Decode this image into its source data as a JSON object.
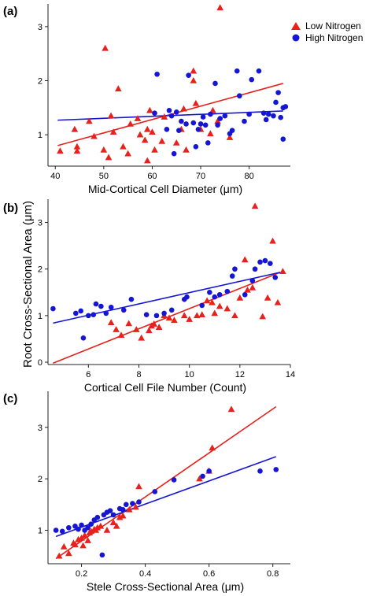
{
  "colors": {
    "low": "#e8211c",
    "high": "#1515d6",
    "axis": "#222222"
  },
  "legend": {
    "placement": "top-right",
    "entries": [
      {
        "label": "Low Nitrogen",
        "marker": "triangle",
        "color_key": "low"
      },
      {
        "label": "High Nitrogen",
        "marker": "circle",
        "color_key": "high"
      }
    ]
  },
  "shared_ylabel": "Root Cross-Sectional Area (μm)",
  "chart_data": [
    {
      "panel": "(a)",
      "type": "scatter",
      "xlabel": "Mid-Cortical Cell Diameter (μm)",
      "ylabel": "",
      "xlim": [
        38.5,
        88.5
      ],
      "ylim": [
        0.42,
        3.42
      ],
      "xticks": [
        40,
        50,
        60,
        70,
        80
      ],
      "yticks": [
        1,
        2,
        3
      ],
      "grid": false,
      "series": [
        {
          "name": "Low Nitrogen",
          "marker": "triangle",
          "color_key": "low",
          "points": [
            [
              41,
              0.7
            ],
            [
              44,
              1.1
            ],
            [
              44.5,
              0.78
            ],
            [
              44.5,
              0.7
            ],
            [
              47,
              1.25
            ],
            [
              48,
              0.97
            ],
            [
              50,
              0.72
            ],
            [
              50.3,
              2.6
            ],
            [
              51,
              0.58
            ],
            [
              51.5,
              1.35
            ],
            [
              52,
              1.05
            ],
            [
              53,
              1.85
            ],
            [
              54,
              0.78
            ],
            [
              55,
              0.65
            ],
            [
              55.5,
              1.2
            ],
            [
              57,
              1.3
            ],
            [
              57.5,
              1.0
            ],
            [
              58.5,
              0.9
            ],
            [
              59,
              0.52
            ],
            [
              59,
              1.1
            ],
            [
              59.5,
              1.45
            ],
            [
              60,
              1.05
            ],
            [
              60.5,
              0.72
            ],
            [
              62,
              0.88
            ],
            [
              62.5,
              1.33
            ],
            [
              65,
              0.85
            ],
            [
              66,
              1.1
            ],
            [
              66.5,
              1.48
            ],
            [
              67,
              0.72
            ],
            [
              68.5,
              2.18
            ],
            [
              68.5,
              2.0
            ],
            [
              69,
              1.58
            ],
            [
              70,
              1.1
            ],
            [
              72,
              1.02
            ],
            [
              72.5,
              1.45
            ],
            [
              73.5,
              1.25
            ],
            [
              74,
              3.35
            ],
            [
              76,
              0.95
            ]
          ]
        },
        {
          "name": "High Nitrogen",
          "marker": "circle",
          "color_key": "high",
          "points": [
            [
              60.5,
              1.4
            ],
            [
              61,
              2.12
            ],
            [
              63,
              1.1
            ],
            [
              63.5,
              1.45
            ],
            [
              64,
              1.35
            ],
            [
              64.5,
              0.65
            ],
            [
              65,
              1.42
            ],
            [
              65.5,
              1.08
            ],
            [
              66,
              1.25
            ],
            [
              67,
              1.2
            ],
            [
              67.5,
              2.1
            ],
            [
              68.5,
              1.22
            ],
            [
              69,
              0.78
            ],
            [
              69.5,
              1.1
            ],
            [
              70,
              1.2
            ],
            [
              70.5,
              1.33
            ],
            [
              71,
              1.18
            ],
            [
              71.5,
              0.85
            ],
            [
              72,
              1.38
            ],
            [
              73,
              1.95
            ],
            [
              73.5,
              1.18
            ],
            [
              74,
              1.3
            ],
            [
              75,
              1.35
            ],
            [
              76,
              1.02
            ],
            [
              76.5,
              1.08
            ],
            [
              77.5,
              2.18
            ],
            [
              78,
              1.72
            ],
            [
              79,
              1.25
            ],
            [
              80,
              1.38
            ],
            [
              80.5,
              2.02
            ],
            [
              82,
              2.18
            ],
            [
              83,
              1.4
            ],
            [
              83.5,
              1.28
            ],
            [
              84,
              1.38
            ],
            [
              85,
              1.35
            ],
            [
              85.5,
              1.6
            ],
            [
              86,
              1.78
            ],
            [
              86.5,
              1.32
            ],
            [
              87,
              1.5
            ],
            [
              87,
              0.92
            ],
            [
              87.5,
              1.52
            ]
          ]
        }
      ],
      "fits": [
        {
          "series": "Low Nitrogen",
          "color_key": "low",
          "x": [
            40.5,
            87
          ],
          "y": [
            0.8,
            1.95
          ]
        },
        {
          "series": "High Nitrogen",
          "color_key": "high",
          "x": [
            40.5,
            87
          ],
          "y": [
            1.27,
            1.44
          ]
        }
      ]
    },
    {
      "panel": "(b)",
      "type": "scatter",
      "xlabel": "Cortical Cell File Number (Count)",
      "ylabel": "Root Cross-Sectional Area (μm)",
      "xlim": [
        4.4,
        14.0
      ],
      "ylim": [
        -0.05,
        3.5
      ],
      "xticks": [
        6,
        8,
        10,
        12,
        14
      ],
      "yticks": [
        0,
        1,
        2,
        3
      ],
      "grid": false,
      "series": [
        {
          "name": "Low Nitrogen",
          "marker": "triangle",
          "color_key": "low",
          "points": [
            [
              6.9,
              0.85
            ],
            [
              7.1,
              0.7
            ],
            [
              7.3,
              0.58
            ],
            [
              7.6,
              0.83
            ],
            [
              7.9,
              0.7
            ],
            [
              8.1,
              0.52
            ],
            [
              8.4,
              0.68
            ],
            [
              8.5,
              0.78
            ],
            [
              8.6,
              0.82
            ],
            [
              8.8,
              0.75
            ],
            [
              9.0,
              1.0
            ],
            [
              9.2,
              0.95
            ],
            [
              9.4,
              0.9
            ],
            [
              9.8,
              1.0
            ],
            [
              10.0,
              0.92
            ],
            [
              10.3,
              1.0
            ],
            [
              10.5,
              1.02
            ],
            [
              10.7,
              1.32
            ],
            [
              10.9,
              1.28
            ],
            [
              11.0,
              1.05
            ],
            [
              11.2,
              1.2
            ],
            [
              11.5,
              1.15
            ],
            [
              11.8,
              1.0
            ],
            [
              12.0,
              1.38
            ],
            [
              12.2,
              2.2
            ],
            [
              12.3,
              1.55
            ],
            [
              12.5,
              1.6
            ],
            [
              12.6,
              3.35
            ],
            [
              12.9,
              0.98
            ],
            [
              13.1,
              1.38
            ],
            [
              13.3,
              2.6
            ],
            [
              13.5,
              1.28
            ],
            [
              13.7,
              1.95
            ]
          ]
        },
        {
          "name": "High Nitrogen",
          "marker": "circle",
          "color_key": "high",
          "points": [
            [
              4.6,
              1.15
            ],
            [
              5.5,
              1.05
            ],
            [
              5.7,
              1.1
            ],
            [
              5.8,
              0.52
            ],
            [
              6.0,
              1.0
            ],
            [
              6.2,
              1.02
            ],
            [
              6.3,
              1.25
            ],
            [
              6.5,
              1.2
            ],
            [
              6.7,
              1.05
            ],
            [
              6.9,
              1.18
            ],
            [
              7.4,
              1.12
            ],
            [
              7.7,
              1.35
            ],
            [
              8.3,
              1.02
            ],
            [
              8.7,
              1.0
            ],
            [
              9.0,
              1.05
            ],
            [
              9.3,
              1.12
            ],
            [
              9.8,
              1.35
            ],
            [
              9.9,
              1.4
            ],
            [
              10.5,
              1.22
            ],
            [
              10.8,
              1.5
            ],
            [
              11.0,
              1.4
            ],
            [
              11.2,
              1.45
            ],
            [
              11.5,
              1.52
            ],
            [
              11.7,
              1.85
            ],
            [
              11.8,
              2.0
            ],
            [
              12.2,
              1.45
            ],
            [
              12.5,
              1.75
            ],
            [
              12.6,
              2.0
            ],
            [
              12.8,
              2.15
            ],
            [
              13.0,
              2.18
            ],
            [
              13.2,
              2.12
            ],
            [
              13.4,
              1.82
            ]
          ]
        }
      ],
      "fits": [
        {
          "series": "Low Nitrogen",
          "color_key": "low",
          "x": [
            4.6,
            13.6
          ],
          "y": [
            -0.02,
            1.93
          ]
        },
        {
          "series": "High Nitrogen",
          "color_key": "high",
          "x": [
            4.6,
            13.6
          ],
          "y": [
            0.84,
            1.93
          ]
        }
      ]
    },
    {
      "panel": "(c)",
      "type": "scatter",
      "xlabel": "Stele Cross-Sectional Area (μm)",
      "ylabel": "",
      "xlim": [
        0.095,
        0.855
      ],
      "ylim": [
        0.35,
        3.7
      ],
      "xticks": [
        0.2,
        0.4,
        0.6,
        0.8
      ],
      "yticks": [
        1,
        2,
        3
      ],
      "grid": false,
      "series": [
        {
          "name": "Low Nitrogen",
          "marker": "triangle",
          "color_key": "low",
          "points": [
            [
              0.13,
              0.5
            ],
            [
              0.145,
              0.68
            ],
            [
              0.16,
              0.55
            ],
            [
              0.175,
              0.75
            ],
            [
              0.18,
              0.72
            ],
            [
              0.19,
              0.82
            ],
            [
              0.2,
              0.85
            ],
            [
              0.205,
              0.7
            ],
            [
              0.21,
              0.9
            ],
            [
              0.22,
              0.8
            ],
            [
              0.225,
              0.95
            ],
            [
              0.23,
              0.98
            ],
            [
              0.24,
              1.02
            ],
            [
              0.245,
              1.0
            ],
            [
              0.25,
              1.05
            ],
            [
              0.26,
              1.08
            ],
            [
              0.28,
              1.0
            ],
            [
              0.3,
              1.15
            ],
            [
              0.31,
              1.08
            ],
            [
              0.32,
              1.25
            ],
            [
              0.33,
              1.28
            ],
            [
              0.35,
              1.4
            ],
            [
              0.37,
              1.45
            ],
            [
              0.38,
              1.85
            ],
            [
              0.57,
              2.0
            ],
            [
              0.6,
              2.15
            ],
            [
              0.61,
              2.6
            ],
            [
              0.67,
              3.35
            ]
          ]
        },
        {
          "name": "High Nitrogen",
          "marker": "circle",
          "color_key": "high",
          "points": [
            [
              0.12,
              1.0
            ],
            [
              0.14,
              0.98
            ],
            [
              0.16,
              1.05
            ],
            [
              0.18,
              1.08
            ],
            [
              0.19,
              1.02
            ],
            [
              0.2,
              1.1
            ],
            [
              0.21,
              1.0
            ],
            [
              0.22,
              1.05
            ],
            [
              0.23,
              1.12
            ],
            [
              0.24,
              1.2
            ],
            [
              0.25,
              1.25
            ],
            [
              0.265,
              0.52
            ],
            [
              0.27,
              1.3
            ],
            [
              0.28,
              1.35
            ],
            [
              0.29,
              1.38
            ],
            [
              0.3,
              1.3
            ],
            [
              0.32,
              1.42
            ],
            [
              0.33,
              1.4
            ],
            [
              0.34,
              1.5
            ],
            [
              0.36,
              1.52
            ],
            [
              0.38,
              1.55
            ],
            [
              0.43,
              1.75
            ],
            [
              0.49,
              1.98
            ],
            [
              0.58,
              2.05
            ],
            [
              0.6,
              2.15
            ],
            [
              0.76,
              2.15
            ],
            [
              0.81,
              2.18
            ]
          ]
        }
      ],
      "fits": [
        {
          "series": "Low Nitrogen",
          "color_key": "low",
          "x": [
            0.12,
            0.81
          ],
          "y": [
            0.45,
            3.4
          ]
        },
        {
          "series": "High Nitrogen",
          "color_key": "high",
          "x": [
            0.12,
            0.81
          ],
          "y": [
            0.88,
            2.43
          ]
        }
      ]
    }
  ]
}
